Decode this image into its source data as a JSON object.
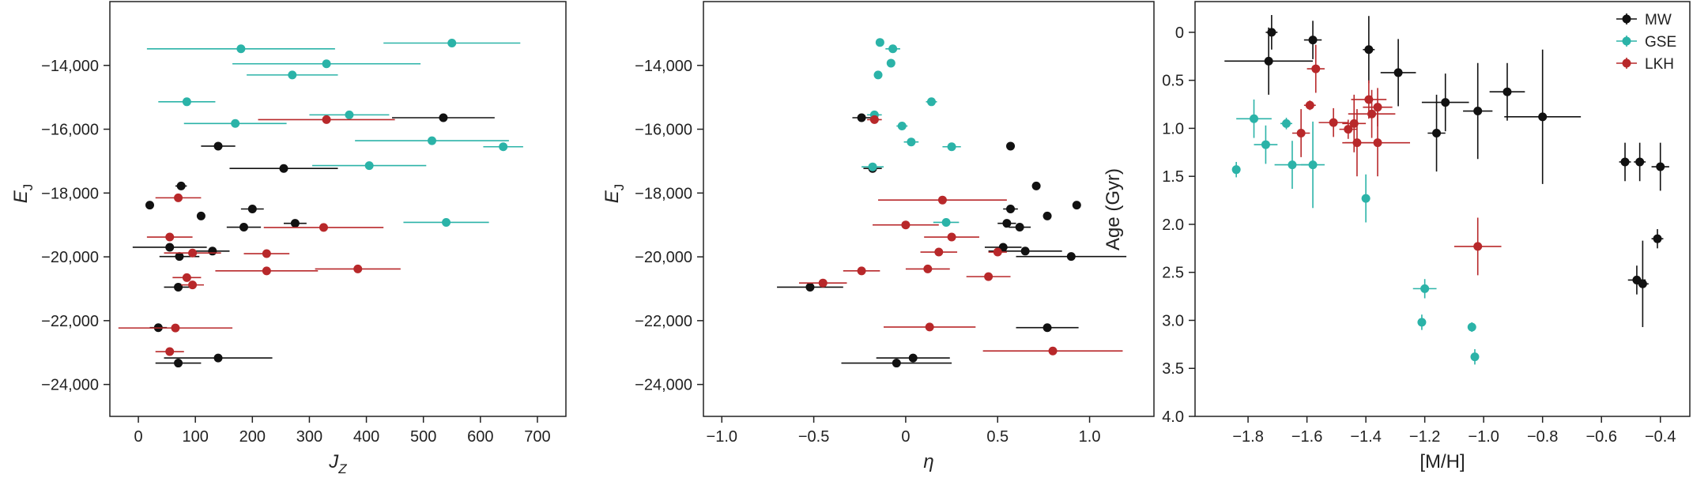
{
  "figure": {
    "colors": {
      "MW": "#111111",
      "GSE": "#2bb3a8",
      "LKH": "#b8282a"
    }
  },
  "chart_data": [
    {
      "type": "scatter",
      "panel": "left",
      "xlabel": "J",
      "xlabel_sub": "Z",
      "ylabel": "E",
      "ylabel_sub": "J",
      "xlim": [
        -50,
        750
      ],
      "ylim": [
        -25000,
        -12000
      ],
      "xticks": [
        0,
        100,
        200,
        300,
        400,
        500,
        600,
        700
      ],
      "xtick_labels": [
        "0",
        "100",
        "200",
        "300",
        "400",
        "500",
        "600",
        "700"
      ],
      "yticks": [
        -24000,
        -22000,
        -20000,
        -18000,
        -16000,
        -14000
      ],
      "ytick_labels": [
        "−24,000",
        "−22,000",
        "−20,000",
        "−18,000",
        "−16,000",
        "−14,000"
      ],
      "series": [
        {
          "name": "MW",
          "color": "#111111",
          "points": [
            {
              "x": 20,
              "y": -18380,
              "xerr": 0
            },
            {
              "x": 75,
              "y": -17780,
              "xerr": 10
            },
            {
              "x": 110,
              "y": -18720,
              "xerr": 0
            },
            {
              "x": 200,
              "y": -18500,
              "xerr": 20
            },
            {
              "x": 185,
              "y": -19070,
              "xerr": 30
            },
            {
              "x": 275,
              "y": -18950,
              "xerr": 20
            },
            {
              "x": 140,
              "y": -16530,
              "xerr": 30
            },
            {
              "x": 255,
              "y": -17230,
              "xerr": 95
            },
            {
              "x": 535,
              "y": -15640,
              "xerr": 90
            },
            {
              "x": 55,
              "y": -19700,
              "xerr": 65
            },
            {
              "x": 130,
              "y": -19820,
              "xerr": 30
            },
            {
              "x": 72,
              "y": -19990,
              "xerr": 35
            },
            {
              "x": 70,
              "y": -20950,
              "xerr": 25
            },
            {
              "x": 35,
              "y": -22220,
              "xerr": 15
            },
            {
              "x": 140,
              "y": -23170,
              "xerr": 95
            },
            {
              "x": 70,
              "y": -23330,
              "xerr": 40
            }
          ]
        },
        {
          "name": "GSE",
          "color": "#2bb3a8",
          "points": [
            {
              "x": 180,
              "y": -13480,
              "xerr": 165
            },
            {
              "x": 550,
              "y": -13300,
              "xerr": 120
            },
            {
              "x": 330,
              "y": -13950,
              "xerr": 165
            },
            {
              "x": 270,
              "y": -14300,
              "xerr": 80
            },
            {
              "x": 85,
              "y": -15140,
              "xerr": 50
            },
            {
              "x": 370,
              "y": -15550,
              "xerr": 70
            },
            {
              "x": 170,
              "y": -15820,
              "xerr": 90
            },
            {
              "x": 515,
              "y": -16360,
              "xerr": 135
            },
            {
              "x": 640,
              "y": -16550,
              "xerr": 35
            },
            {
              "x": 405,
              "y": -17140,
              "xerr": 100
            },
            {
              "x": 540,
              "y": -18920,
              "xerr": 75
            }
          ]
        },
        {
          "name": "LKH",
          "color": "#b8282a",
          "points": [
            {
              "x": 330,
              "y": -15700,
              "xerr": 120
            },
            {
              "x": 70,
              "y": -18150,
              "xerr": 40
            },
            {
              "x": 325,
              "y": -19080,
              "xerr": 105
            },
            {
              "x": 55,
              "y": -19380,
              "xerr": 40
            },
            {
              "x": 95,
              "y": -19880,
              "xerr": 50
            },
            {
              "x": 225,
              "y": -19900,
              "xerr": 40
            },
            {
              "x": 385,
              "y": -20380,
              "xerr": 75
            },
            {
              "x": 225,
              "y": -20440,
              "xerr": 90
            },
            {
              "x": 85,
              "y": -20650,
              "xerr": 25
            },
            {
              "x": 95,
              "y": -20880,
              "xerr": 20
            },
            {
              "x": 65,
              "y": -22230,
              "xerr": 100
            },
            {
              "x": 55,
              "y": -22970,
              "xerr": 25
            }
          ]
        }
      ]
    },
    {
      "type": "scatter",
      "panel": "middle",
      "xlabel": "η",
      "ylabel": "E",
      "ylabel_sub": "J",
      "xlim": [
        -1.1,
        1.35
      ],
      "ylim": [
        -25000,
        -12000
      ],
      "xticks": [
        -1.0,
        -0.5,
        0,
        0.5,
        1.0
      ],
      "xtick_labels": [
        "−1.0",
        "−0.5",
        "0",
        "0.5",
        "1.0"
      ],
      "yticks": [
        -24000,
        -22000,
        -20000,
        -18000,
        -16000,
        -14000
      ],
      "ytick_labels": [
        "−24,000",
        "−22,000",
        "−20,000",
        "−18,000",
        "−16,000",
        "−14,000"
      ],
      "series": [
        {
          "name": "MW",
          "color": "#111111",
          "points": [
            {
              "x": -0.24,
              "y": -15640,
              "xerr": 0.05
            },
            {
              "x": 0.57,
              "y": -16530,
              "xerr": 0
            },
            {
              "x": 0.71,
              "y": -17780,
              "xerr": 0
            },
            {
              "x": 0.57,
              "y": -18500,
              "xerr": 0.04
            },
            {
              "x": 0.77,
              "y": -18720,
              "xerr": 0
            },
            {
              "x": 0.93,
              "y": -18380,
              "xerr": 0
            },
            {
              "x": 0.55,
              "y": -18950,
              "xerr": 0.05
            },
            {
              "x": 0.62,
              "y": -19070,
              "xerr": 0.06
            },
            {
              "x": 0.53,
              "y": -19700,
              "xerr": 0.1
            },
            {
              "x": 0.65,
              "y": -19820,
              "xerr": 0.2
            },
            {
              "x": 0.9,
              "y": -19990,
              "xerr": 0.3
            },
            {
              "x": -0.52,
              "y": -20950,
              "xerr": 0.18
            },
            {
              "x": 0.77,
              "y": -22220,
              "xerr": 0.17
            },
            {
              "x": 0.04,
              "y": -23170,
              "xerr": 0.2
            },
            {
              "x": -0.05,
              "y": -23330,
              "xerr": 0.3
            },
            {
              "x": -0.18,
              "y": -17230,
              "xerr": 0.05
            }
          ]
        },
        {
          "name": "GSE",
          "color": "#2bb3a8",
          "points": [
            {
              "x": -0.14,
              "y": -13280,
              "xerr": 0
            },
            {
              "x": -0.07,
              "y": -13480,
              "xerr": 0.04
            },
            {
              "x": -0.08,
              "y": -13930,
              "xerr": 0
            },
            {
              "x": -0.15,
              "y": -14300,
              "xerr": 0
            },
            {
              "x": 0.14,
              "y": -15140,
              "xerr": 0.03
            },
            {
              "x": -0.17,
              "y": -15550,
              "xerr": 0.04
            },
            {
              "x": -0.02,
              "y": -15900,
              "xerr": 0.03
            },
            {
              "x": 0.03,
              "y": -16400,
              "xerr": 0.04
            },
            {
              "x": 0.25,
              "y": -16550,
              "xerr": 0.05
            },
            {
              "x": -0.18,
              "y": -17180,
              "xerr": 0.06
            },
            {
              "x": 0.22,
              "y": -18920,
              "xerr": 0.07
            }
          ]
        },
        {
          "name": "LKH",
          "color": "#b8282a",
          "points": [
            {
              "x": -0.17,
              "y": -15700,
              "xerr": 0.04
            },
            {
              "x": 0.2,
              "y": -18220,
              "xerr": 0.35
            },
            {
              "x": 0.0,
              "y": -19000,
              "xerr": 0.18
            },
            {
              "x": 0.25,
              "y": -19380,
              "xerr": 0.15
            },
            {
              "x": 0.18,
              "y": -19850,
              "xerr": 0.1
            },
            {
              "x": 0.5,
              "y": -19850,
              "xerr": 0.05
            },
            {
              "x": 0.12,
              "y": -20380,
              "xerr": 0.12
            },
            {
              "x": -0.24,
              "y": -20440,
              "xerr": 0.1
            },
            {
              "x": 0.45,
              "y": -20620,
              "xerr": 0.12
            },
            {
              "x": -0.45,
              "y": -20820,
              "xerr": 0.13
            },
            {
              "x": 0.13,
              "y": -22200,
              "xerr": 0.25
            },
            {
              "x": 0.8,
              "y": -22950,
              "xerr": 0.38
            }
          ]
        }
      ]
    },
    {
      "type": "scatter",
      "panel": "right",
      "xlabel": "[M/H]",
      "ylabel": "Age (Gyr)",
      "xlim": [
        -1.98,
        -0.3
      ],
      "ylim": [
        4.0,
        -0.32
      ],
      "y_inverted": true,
      "xticks": [
        -1.8,
        -1.6,
        -1.4,
        -1.2,
        -1.0,
        -0.8,
        -0.6,
        -0.4
      ],
      "xtick_labels": [
        "−1.8",
        "−1.6",
        "−1.4",
        "−1.2",
        "−1.0",
        "−0.8",
        "−0.6",
        "−0.4"
      ],
      "yticks": [
        0,
        0.5,
        1.0,
        1.5,
        2.0,
        2.5,
        3.0,
        3.5,
        4.0
      ],
      "ytick_labels": [
        "0",
        "0.5",
        "1.0",
        "1.5",
        "2.0",
        "2.5",
        "3.0",
        "3.5",
        "4.0"
      ],
      "legend": {
        "position": "top-right",
        "entries": [
          "MW",
          "GSE",
          "LKH"
        ]
      },
      "series": [
        {
          "name": "MW",
          "color": "#111111",
          "points": [
            {
              "x": -1.72,
              "y": 0.0,
              "xerr": 0.02,
              "yerr": 0.18
            },
            {
              "x": -1.58,
              "y": 0.08,
              "xerr": 0.03,
              "yerr": 0.2
            },
            {
              "x": -1.73,
              "y": 0.3,
              "xerr": 0.15,
              "yerr": 0.35
            },
            {
              "x": -1.39,
              "y": 0.18,
              "xerr": 0.02,
              "yerr": 0.35
            },
            {
              "x": -1.29,
              "y": 0.42,
              "xerr": 0.06,
              "yerr": 0.35
            },
            {
              "x": -1.13,
              "y": 0.73,
              "xerr": 0.08,
              "yerr": 0.3
            },
            {
              "x": -1.02,
              "y": 0.82,
              "xerr": 0.05,
              "yerr": 0.5
            },
            {
              "x": -0.92,
              "y": 0.62,
              "xerr": 0.06,
              "yerr": 0.3
            },
            {
              "x": -0.8,
              "y": 0.88,
              "xerr": 0.13,
              "yerr": 0.7
            },
            {
              "x": -1.16,
              "y": 1.05,
              "xerr": 0.03,
              "yerr": 0.4
            },
            {
              "x": -0.52,
              "y": 1.35,
              "xerr": 0.02,
              "yerr": 0.2
            },
            {
              "x": -0.47,
              "y": 1.35,
              "xerr": 0.02,
              "yerr": 0.2
            },
            {
              "x": -0.4,
              "y": 1.4,
              "xerr": 0.03,
              "yerr": 0.25
            },
            {
              "x": -0.41,
              "y": 2.15,
              "xerr": 0.02,
              "yerr": 0.1
            },
            {
              "x": -0.48,
              "y": 2.58,
              "xerr": 0.03,
              "yerr": 0.15
            },
            {
              "x": -0.46,
              "y": 2.62,
              "xerr": 0.02,
              "yerr": 0.45
            }
          ]
        },
        {
          "name": "GSE",
          "color": "#2bb3a8",
          "points": [
            {
              "x": -1.84,
              "y": 1.43,
              "xerr": 0,
              "yerr": 0.08
            },
            {
              "x": -1.78,
              "y": 0.9,
              "xerr": 0.06,
              "yerr": 0.2
            },
            {
              "x": -1.74,
              "y": 1.17,
              "xerr": 0.04,
              "yerr": 0.2
            },
            {
              "x": -1.67,
              "y": 0.95,
              "xerr": 0.02,
              "yerr": 0.06
            },
            {
              "x": -1.65,
              "y": 1.38,
              "xerr": 0.06,
              "yerr": 0.25
            },
            {
              "x": -1.58,
              "y": 1.38,
              "xerr": 0.04,
              "yerr": 0.45
            },
            {
              "x": -1.4,
              "y": 1.73,
              "xerr": 0,
              "yerr": 0.25
            },
            {
              "x": -1.2,
              "y": 2.67,
              "xerr": 0.04,
              "yerr": 0.1
            },
            {
              "x": -1.21,
              "y": 3.02,
              "xerr": 0,
              "yerr": 0.08
            },
            {
              "x": -1.04,
              "y": 3.07,
              "xerr": 0,
              "yerr": 0.05
            },
            {
              "x": -1.03,
              "y": 3.38,
              "xerr": 0,
              "yerr": 0.08
            }
          ]
        },
        {
          "name": "LKH",
          "color": "#b8282a",
          "points": [
            {
              "x": -1.57,
              "y": 0.38,
              "xerr": 0.03,
              "yerr": 0.25
            },
            {
              "x": -1.59,
              "y": 0.76,
              "xerr": 0.02,
              "yerr": 0.05
            },
            {
              "x": -1.62,
              "y": 1.05,
              "xerr": 0.03,
              "yerr": 0.25
            },
            {
              "x": -1.51,
              "y": 0.94,
              "xerr": 0.05,
              "yerr": 0.15
            },
            {
              "x": -1.46,
              "y": 1.01,
              "xerr": 0.03,
              "yerr": 0.1
            },
            {
              "x": -1.44,
              "y": 0.95,
              "xerr": 0.04,
              "yerr": 0.3
            },
            {
              "x": -1.43,
              "y": 1.15,
              "xerr": 0.05,
              "yerr": 0.35
            },
            {
              "x": -1.39,
              "y": 0.7,
              "xerr": 0.06,
              "yerr": 0.2
            },
            {
              "x": -1.38,
              "y": 0.85,
              "xerr": 0.08,
              "yerr": 0.25
            },
            {
              "x": -1.36,
              "y": 0.78,
              "xerr": 0.05,
              "yerr": 0.2
            },
            {
              "x": -1.36,
              "y": 1.15,
              "xerr": 0.11,
              "yerr": 0.35
            },
            {
              "x": -1.02,
              "y": 2.23,
              "xerr": 0.08,
              "yerr": 0.3
            }
          ]
        }
      ]
    }
  ]
}
